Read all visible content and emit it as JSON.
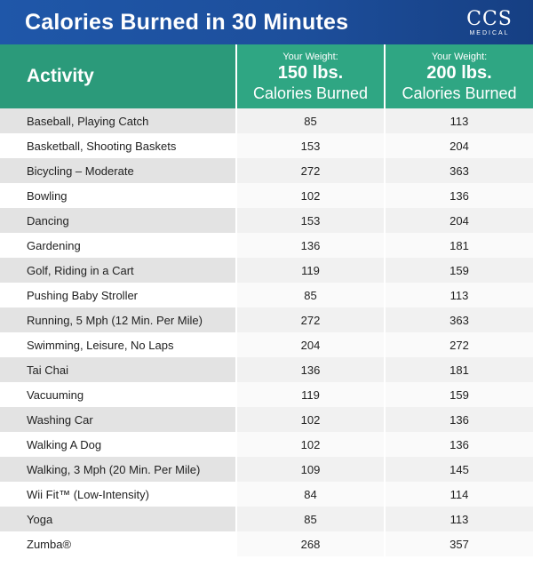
{
  "title": "Calories Burned in 30 Minutes",
  "logo": {
    "main": "CCS",
    "sub": "MEDICAL"
  },
  "header": {
    "activity": "Activity",
    "col1": {
      "small": "Your Weight:",
      "weight": "150 lbs.",
      "label": "Calories Burned"
    },
    "col2": {
      "small": "Your Weight:",
      "weight": "200 lbs.",
      "label": "Calories Burned"
    }
  },
  "rows": [
    {
      "activity": "Baseball, Playing Catch",
      "w150": "85",
      "w200": "113"
    },
    {
      "activity": "Basketball, Shooting Baskets",
      "w150": "153",
      "w200": "204"
    },
    {
      "activity": "Bicycling – Moderate",
      "w150": "272",
      "w200": "363"
    },
    {
      "activity": "Bowling",
      "w150": "102",
      "w200": "136"
    },
    {
      "activity": "Dancing",
      "w150": "153",
      "w200": "204"
    },
    {
      "activity": "Gardening",
      "w150": "136",
      "w200": "181"
    },
    {
      "activity": "Golf, Riding in a Cart",
      "w150": "119",
      "w200": "159"
    },
    {
      "activity": "Pushing Baby Stroller",
      "w150": "85",
      "w200": "113"
    },
    {
      "activity": "Running, 5 Mph (12 Min. Per Mile)",
      "w150": "272",
      "w200": "363"
    },
    {
      "activity": "Swimming, Leisure, No Laps",
      "w150": "204",
      "w200": "272"
    },
    {
      "activity": "Tai Chai",
      "w150": "136",
      "w200": "181"
    },
    {
      "activity": "Vacuuming",
      "w150": "119",
      "w200": "159"
    },
    {
      "activity": "Washing Car",
      "w150": "102",
      "w200": "136"
    },
    {
      "activity": "Walking A Dog",
      "w150": "102",
      "w200": "136"
    },
    {
      "activity": "Walking, 3 Mph (20 Min. Per Mile)",
      "w150": "109",
      "w200": "145"
    },
    {
      "activity": "Wii Fit™ (Low-Intensity)",
      "w150": "84",
      "w200": "114"
    },
    {
      "activity": "Yoga",
      "w150": "85",
      "w200": "113"
    },
    {
      "activity": "Zumba®",
      "w150": "268",
      "w200": "357"
    }
  ]
}
